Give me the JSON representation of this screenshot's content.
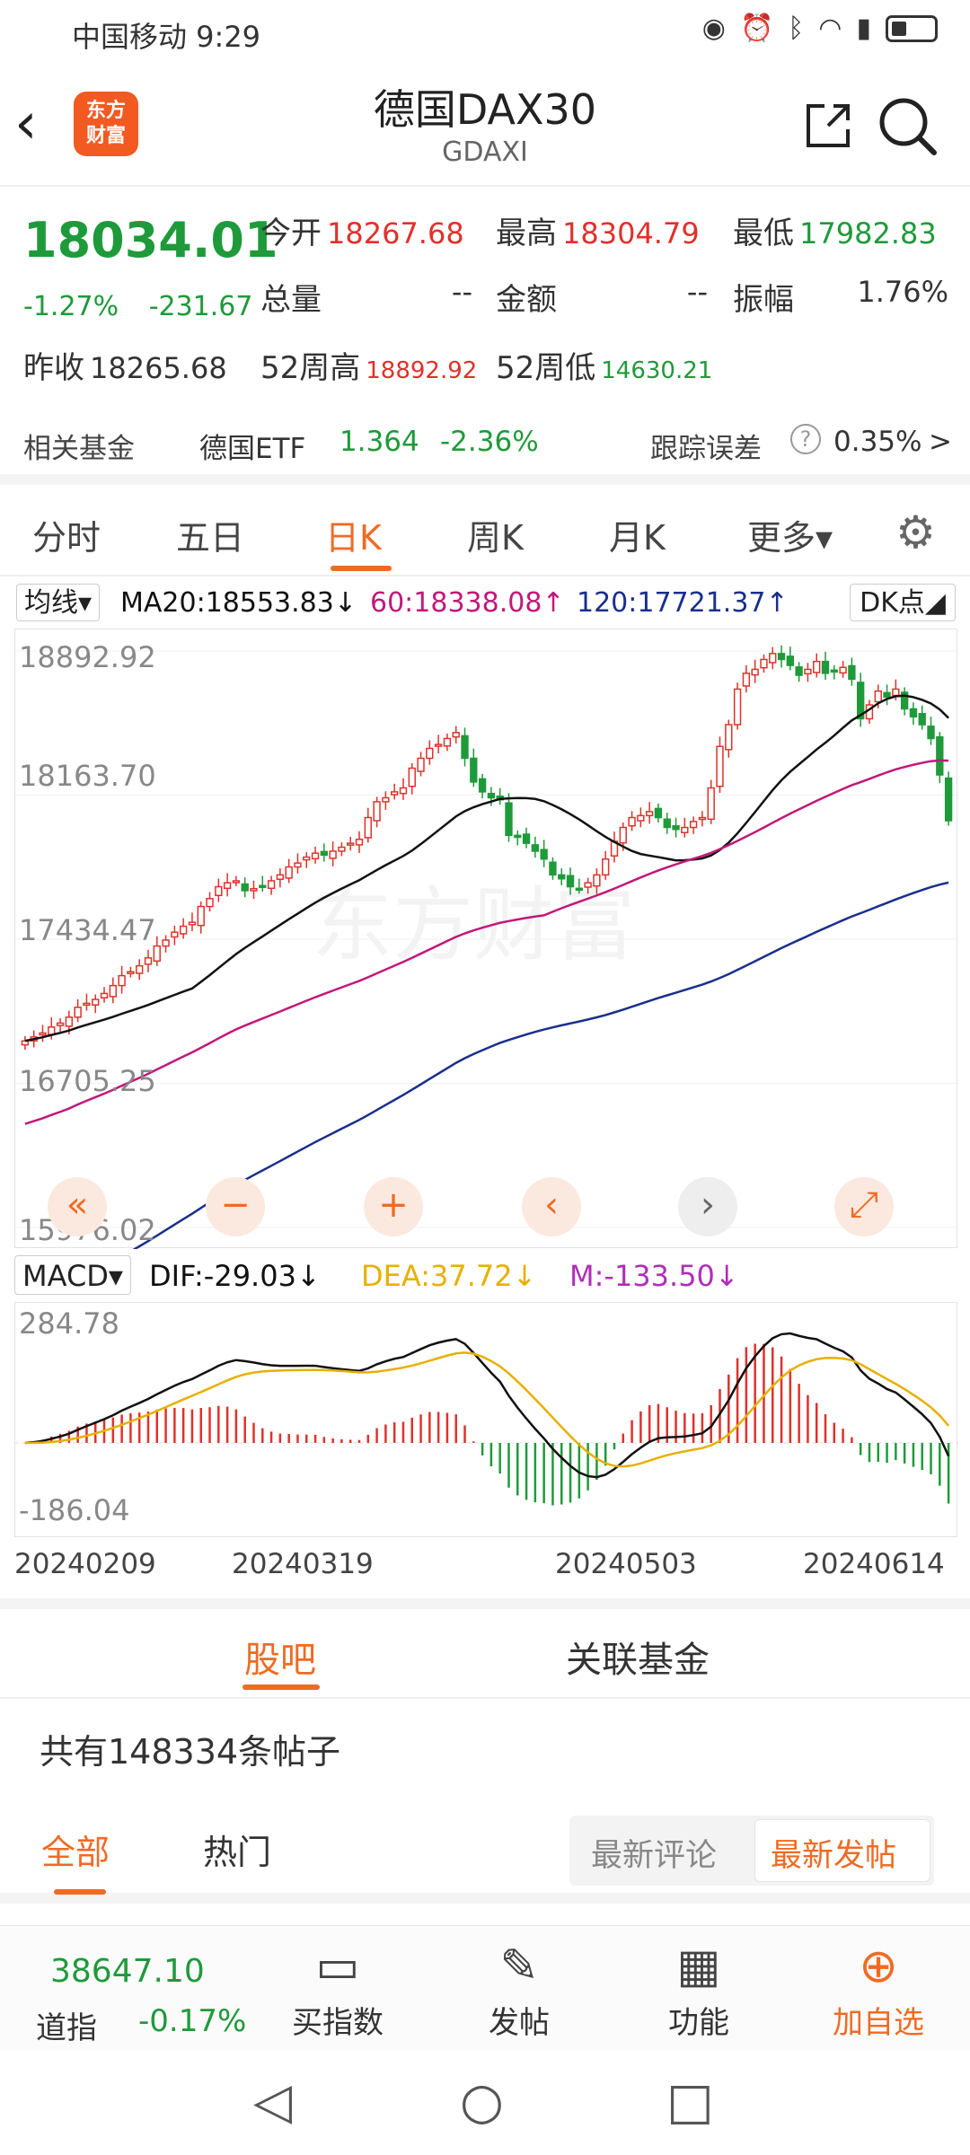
{
  "status": {
    "time": "中国移动 9:29",
    "icons": [
      "eye-icon",
      "alarm-icon",
      "bluetooth-icon",
      "vibrate-icon",
      "wifi-icon",
      "5g-icon",
      "signal-icon",
      "battery-icon"
    ]
  },
  "header": {
    "back_glyph": "‹",
    "logo_text": "东方\n财富",
    "title": "德国DAX30",
    "subtitle": "GDAXI"
  },
  "quote": {
    "price": "18034.01",
    "change_pct": "-1.27%",
    "change_abs": "-231.67",
    "open_label": "今开",
    "open": "18267.68",
    "high_label": "最高",
    "high": "18304.79",
    "low_label": "最低",
    "low": "17982.83",
    "volume_label": "总量",
    "volume": "--",
    "amount_label": "金额",
    "amount": "--",
    "amplitude_label": "振幅",
    "amplitude": "1.76%",
    "prev_close_label": "昨收",
    "prev_close": "18265.68",
    "wk52_high_label": "52周高",
    "wk52_high": "18892.92",
    "wk52_low_label": "52周低",
    "wk52_low": "14630.21"
  },
  "fund": {
    "label": "相关基金",
    "name": "德国ETF",
    "price": "1.364",
    "change": "-2.36%",
    "tracking_label": "跟踪误差",
    "tracking_value": "0.35%",
    "chevron": ">"
  },
  "tabs": [
    "分时",
    "五日",
    "日K",
    "周K",
    "月K",
    "更多▾"
  ],
  "active_tab": "日K",
  "ma": {
    "select": "均线▾",
    "ma20": "MA20:18553.83↓",
    "ma60": "60:18338.08↑",
    "ma120": "120:17721.37↑",
    "dk": "DK点◢"
  },
  "kchart": {
    "y_labels": [
      "18892.92",
      "18163.70",
      "17434.47",
      "16705.25",
      "15976.02"
    ],
    "controls": [
      "«",
      "−",
      "+",
      "‹",
      "›",
      "⤢"
    ],
    "watermark": "东方财富"
  },
  "macd": {
    "select": "MACD▾",
    "dif": "DIF:-29.03↓",
    "dea": "DEA:37.72↓",
    "m": "M:-133.50↓",
    "y_top": "284.78",
    "y_bottom": "-186.04"
  },
  "dates": [
    "20240209",
    "20240319",
    "20240503",
    "20240614"
  ],
  "colors": {
    "up": "#e0312b",
    "down": "#1f9a3a",
    "accent": "#ef6b24",
    "ma20": "#111111",
    "ma60": "#c2187a",
    "ma120": "#1a2f8c",
    "dea": "#e8b000",
    "m": "#b02fb8"
  },
  "chart_data": [
    {
      "type": "candlestick",
      "title": "",
      "y_ticks": [
        18892.92,
        18163.7,
        17434.47,
        16705.25,
        15976.02
      ],
      "ylim": [
        15976.02,
        18892.92
      ],
      "x_ticks": [
        "20240209",
        "20240319",
        "20240503",
        "20240614"
      ],
      "closes": [
        16920,
        16940,
        16960,
        16990,
        17010,
        17040,
        17090,
        17110,
        17130,
        17160,
        17200,
        17250,
        17270,
        17300,
        17340,
        17400,
        17430,
        17470,
        17500,
        17520,
        17600,
        17640,
        17700,
        17720,
        17730,
        17680,
        17690,
        17700,
        17730,
        17760,
        17800,
        17820,
        17850,
        17870,
        17860,
        17880,
        17900,
        17920,
        17940,
        18050,
        18130,
        18150,
        18180,
        18200,
        18300,
        18350,
        18400,
        18420,
        18450,
        18480,
        18350,
        18230,
        18180,
        18150,
        18140,
        17960,
        17950,
        17920,
        17880,
        17840,
        17760,
        17740,
        17700,
        17690,
        17720,
        17760,
        17840,
        17930,
        18000,
        18050,
        18060,
        18080,
        18050,
        18000,
        17990,
        18000,
        18030,
        18050,
        18200,
        18410,
        18520,
        18700,
        18780,
        18800,
        18850,
        18880,
        18850,
        18820,
        18770,
        18800,
        18840,
        18780,
        18790,
        18810,
        18750,
        18550,
        18620,
        18690,
        18660,
        18700,
        18600,
        18560,
        18520,
        18450,
        18265.68,
        18034.01
      ],
      "ma20": {
        "label": "MA20",
        "last": 18553.83
      },
      "ma60": {
        "label": "60",
        "last": 18338.08
      },
      "ma120": {
        "label": "120",
        "last": 17721.37
      }
    },
    {
      "type": "bar",
      "title": "",
      "ylim": [
        -186.04,
        284.78
      ],
      "series": [
        {
          "name": "DIF",
          "last": -29.03
        },
        {
          "name": "DEA",
          "last": 37.72
        },
        {
          "name": "M",
          "last": -133.5
        }
      ]
    }
  ],
  "subtabs": [
    "股吧",
    "关联基金"
  ],
  "posts": "共有148334条帖子",
  "ftabs": [
    "全部",
    "热门"
  ],
  "sort": [
    "最新评论",
    "最新发帖"
  ],
  "toolbar": {
    "index_value": "38647.10",
    "index_name": "道指",
    "index_change": "-0.17%",
    "items": [
      "买指数",
      "发帖",
      "功能",
      "加自选"
    ]
  },
  "navbar": [
    "◁",
    "○",
    "□"
  ]
}
